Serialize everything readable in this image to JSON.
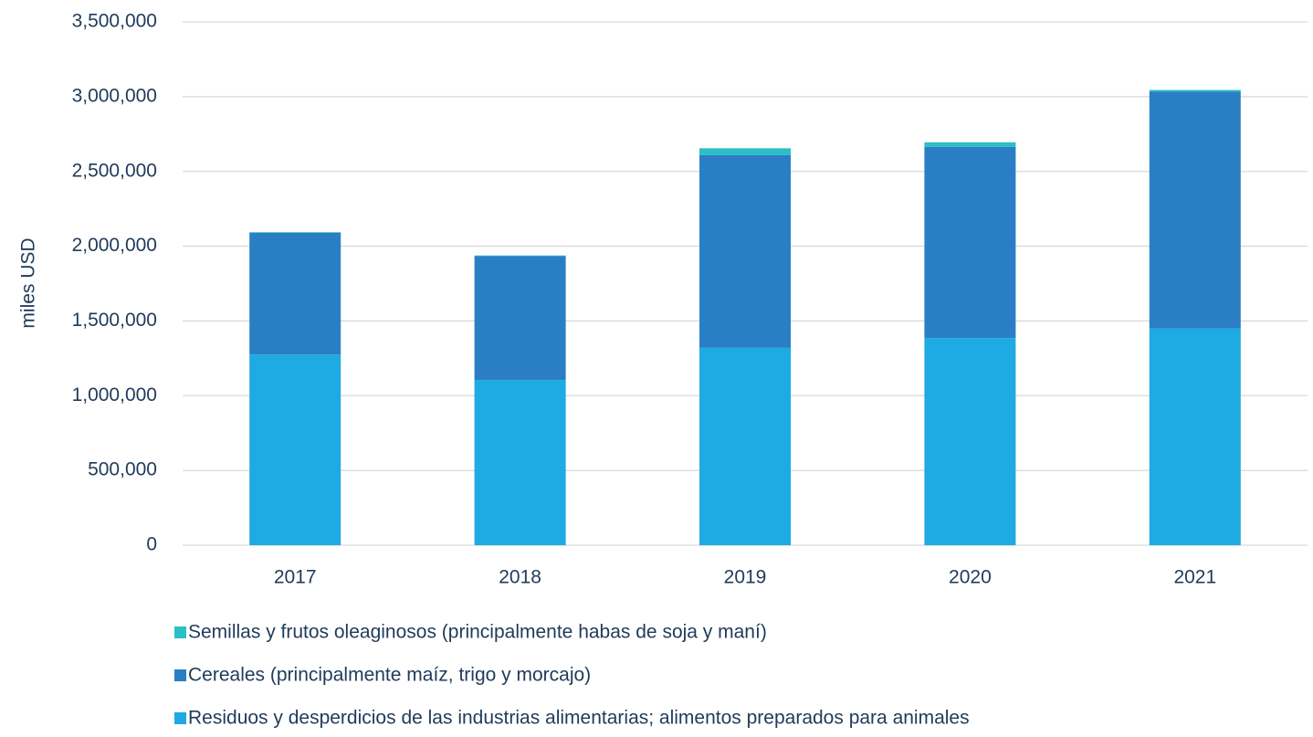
{
  "chart_data": {
    "type": "stacked_bar",
    "y_label": "miles USD",
    "categories": [
      "2017",
      "2018",
      "2019",
      "2020",
      "2021"
    ],
    "series": [
      {
        "name": "Residuos y desperdicios de las industrias alimentarias; alimentos preparados para animales",
        "color": "#1eaae2",
        "values": [
          1275000,
          1105000,
          1320000,
          1385000,
          1450000
        ]
      },
      {
        "name": "Cereales (principalmente maíz, trigo y morcajo)",
        "color": "#2a7fc4",
        "values": [
          815000,
          830000,
          1290000,
          1280000,
          1585000
        ]
      },
      {
        "name": "Semillas y frutos oleaginosos (principalmente habas de soja y maní)",
        "color": "#2bbfc6",
        "values": [
          4000,
          3000,
          45000,
          30000,
          10000
        ]
      }
    ],
    "ylim": [
      0,
      3500000
    ],
    "yticks": [
      0,
      {
        "value": 500000,
        "label": "500,000"
      },
      {
        "value": 1000000,
        "label": "1,000,000"
      },
      {
        "value": 1500000,
        "label": "1,500,000"
      },
      {
        "value": 2000000,
        "label": "2,000,000"
      },
      {
        "value": 2500000,
        "label": "2,500,000"
      },
      {
        "value": 3000000,
        "label": "3,000,000"
      },
      {
        "value": 3500000,
        "label": "3,500,000"
      }
    ],
    "grid": true
  }
}
